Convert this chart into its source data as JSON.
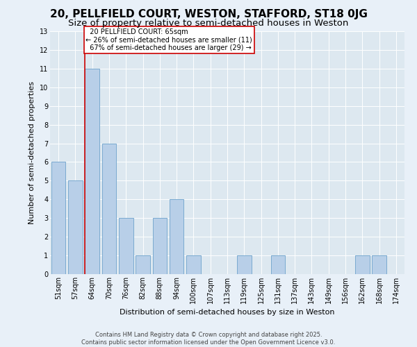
{
  "title": "20, PELLFIELD COURT, WESTON, STAFFORD, ST18 0JG",
  "subtitle": "Size of property relative to semi-detached houses in Weston",
  "xlabel": "Distribution of semi-detached houses by size in Weston",
  "ylabel": "Number of semi-detached properties",
  "categories": [
    "51sqm",
    "57sqm",
    "64sqm",
    "70sqm",
    "76sqm",
    "82sqm",
    "88sqm",
    "94sqm",
    "100sqm",
    "107sqm",
    "113sqm",
    "119sqm",
    "125sqm",
    "131sqm",
    "137sqm",
    "143sqm",
    "149sqm",
    "156sqm",
    "162sqm",
    "168sqm",
    "174sqm"
  ],
  "values": [
    6,
    5,
    11,
    7,
    3,
    1,
    3,
    4,
    1,
    0,
    0,
    1,
    0,
    1,
    0,
    0,
    0,
    0,
    1,
    1,
    0
  ],
  "bar_color": "#b8cfe8",
  "bar_edge_color": "#7aaad0",
  "subject_bin_index": 2,
  "subject_label": "20 PELLFIELD COURT: 65sqm",
  "pct_smaller": 26,
  "n_smaller": 11,
  "pct_larger": 67,
  "n_larger": 29,
  "red_line_color": "#cc0000",
  "annotation_box_color": "#cc0000",
  "ylim": [
    0,
    13
  ],
  "yticks": [
    0,
    1,
    2,
    3,
    4,
    5,
    6,
    7,
    8,
    9,
    10,
    11,
    12,
    13
  ],
  "plot_bg_color": "#dde8f0",
  "fig_bg_color": "#e8f0f8",
  "footer_line1": "Contains HM Land Registry data © Crown copyright and database right 2025.",
  "footer_line2": "Contains public sector information licensed under the Open Government Licence v3.0.",
  "title_fontsize": 11,
  "subtitle_fontsize": 9.5,
  "tick_fontsize": 7,
  "label_fontsize": 8,
  "annotation_fontsize": 7,
  "footer_fontsize": 6
}
